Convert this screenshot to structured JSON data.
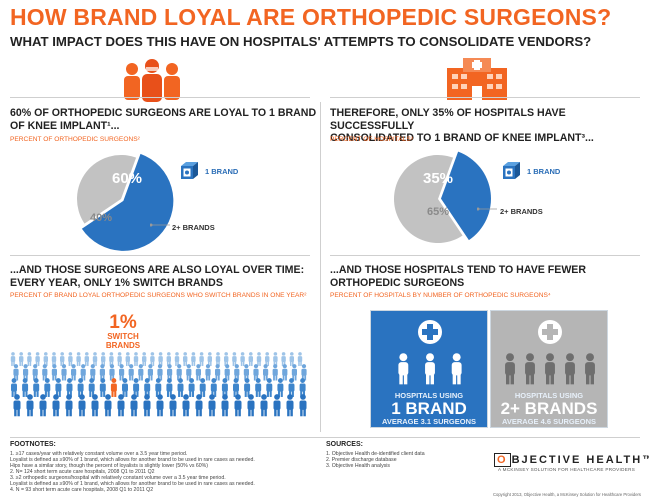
{
  "title": "HOW BRAND LOYAL ARE ORTHOPEDIC SURGEONS?",
  "subtitle": "WHAT IMPACT DOES THIS HAVE ON HOSPITALS' ATTEMPTS TO CONSOLIDATE VENDORS?",
  "colors": {
    "accent": "#f26522",
    "blue": "#2a73c0",
    "grey": "#c2c2c2",
    "text": "#222222"
  },
  "icons": {
    "surgeons": "surgeon-group-icon",
    "hospital": "hospital-building-icon",
    "cube": "brand-cube-icon",
    "cross": "medical-cross-icon",
    "person": "person-icon"
  },
  "panel1": {
    "heading_line1": "60% OF ORTHOPEDIC SURGEONS ARE LOYAL TO 1 BRAND",
    "heading_line2": "OF KNEE IMPLANT¹...",
    "sub": "PERCENT OF ORTHOPEDIC SURGEONS²",
    "pie": {
      "one_brand_pct": 60,
      "two_plus_pct": 40,
      "one_label": "60%",
      "two_label": "40%"
    },
    "legend_one": "1 BRAND",
    "legend_two": "2+ BRANDS"
  },
  "panel2": {
    "heading_line1": "THEREFORE, ONLY 35% OF HOSPITALS HAVE SUCCESSFULLY",
    "heading_line2": "CONSOLIDATED TO 1 BRAND OF KNEE IMPLANT³...",
    "sub": "PERCENT OF HOSPITALS³",
    "pie": {
      "one_brand_pct": 35,
      "two_plus_pct": 65,
      "one_label": "35%",
      "two_label": "65%"
    },
    "legend_one": "1 BRAND",
    "legend_two": "2+ BRANDS"
  },
  "panel3": {
    "heading_line1": "...AND THOSE SURGEONS ARE ALSO LOYAL OVER TIME:",
    "heading_line2": "EVERY YEAR, ONLY 1% SWITCH BRANDS",
    "sub": "PERCENT OF BRAND LOYAL ORTHOPEDIC SURGEONS WHO SWITCH BRANDS IN ONE YEAR²",
    "switch_pct": "1%",
    "switch_line1": "SWITCH",
    "switch_line2": "BRANDS"
  },
  "panel4": {
    "heading_line1": "...AND THOSE HOSPITALS TEND TO HAVE FEWER",
    "heading_line2": "ORTHOPEDIC SURGEONS",
    "sub": "PERCENT OF HOSPITALS BY NUMBER OF ORTHOPEDIC SURGEONS⁴",
    "card1": {
      "line1": "HOSPITALS USING",
      "line2": "1 BRAND",
      "line3": "AVERAGE 3.1 SURGEONS"
    },
    "card2": {
      "line1": "HOSPITALS USING",
      "line2": "2+ BRANDS",
      "line3": "AVERAGE 4.6 SURGEONS"
    }
  },
  "footnotes": {
    "heading": "FOOTNOTES:",
    "lines": [
      "1. ≥17 cases/year with relatively constant volume over a 3.5 year time period.",
      "Loyalist is defined as ≥90% of 1 brand, which allows for another brand to be used in rare cases as needed.",
      "Hips have a similar story, though the percent of loyalists is slightly lower (50% vs 60%)",
      "2. N= 124 short term acute care hospitals, 2008 Q1 to 2011 Q2",
      "3. ≥2 orthopedic surgeons/hospital with relatively constant volume over a 3.5 year time period.",
      "   Loyalist is defined as ≥90% of 1 brand, which allows for another brand to be used in rare cases as needed.",
      "4. N = 93 short term acute care hospitals, 2008 Q1 to 2011 Q2"
    ]
  },
  "sources": {
    "heading": "SOURCES:",
    "lines": [
      "1. Objective Health de-identified client data",
      "2. Premier discharge database",
      "3. Objective Health analysis"
    ]
  },
  "logo": {
    "first_letter": "O",
    "rest": "BJECTIVE HEALTH™",
    "tagline": "A MCKINSEY SOLUTION FOR HEALTHCARE PROVIDERS"
  },
  "copyright": "Copyright 2013, Objective Health, a McKinsey Solution for Healthcare Providers"
}
